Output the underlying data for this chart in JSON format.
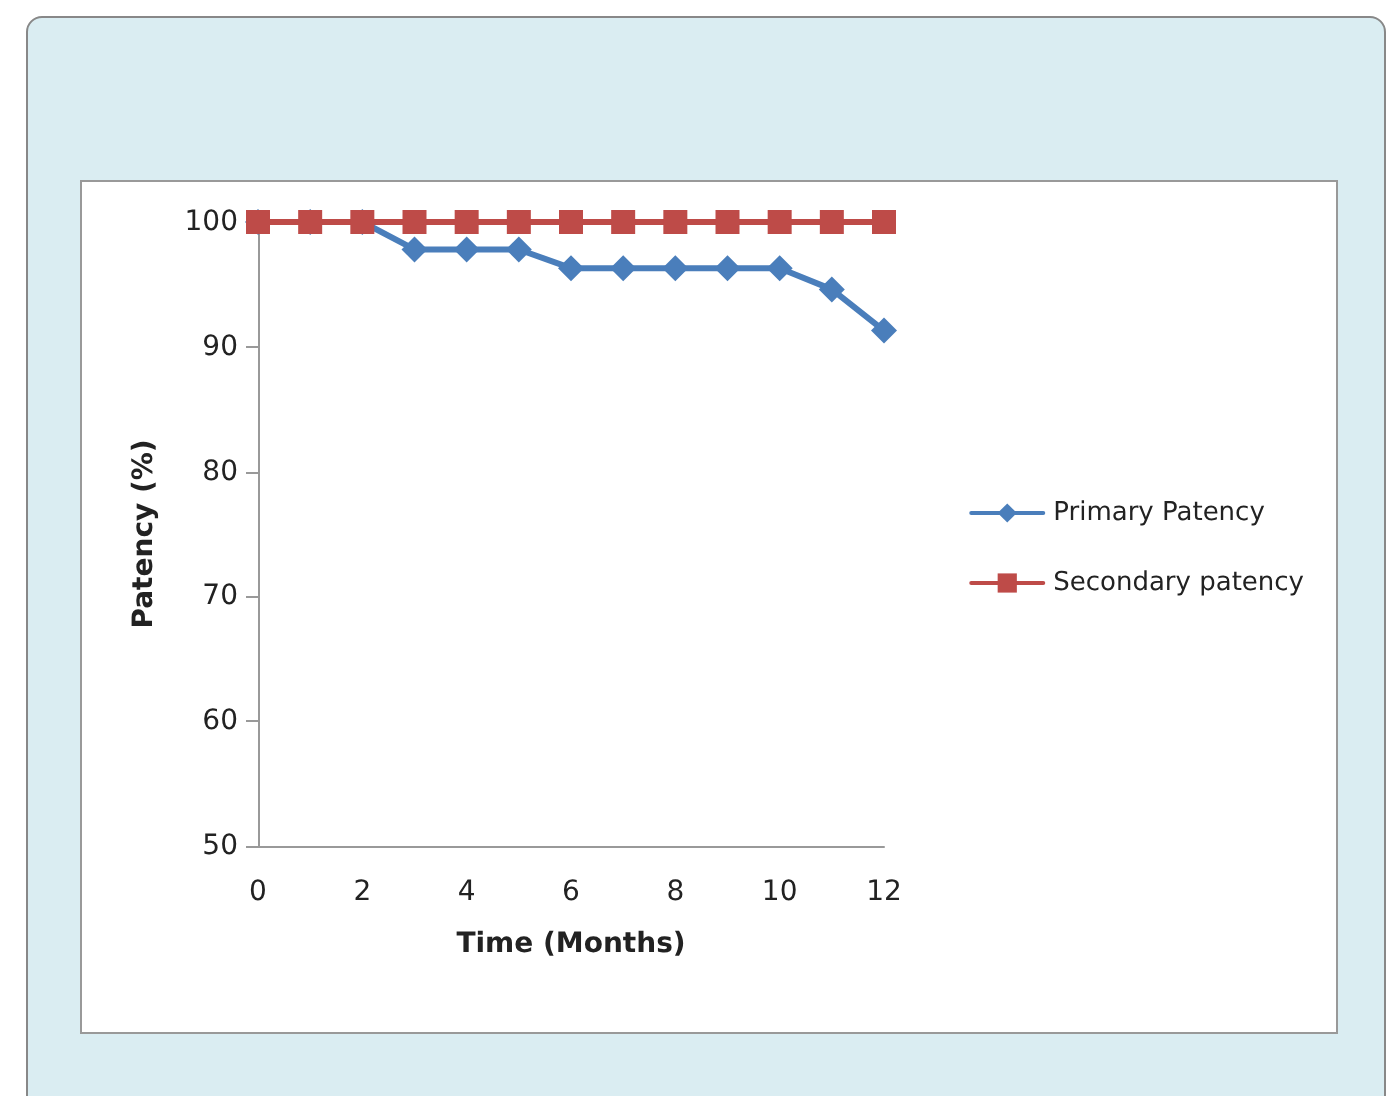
{
  "chart_data": {
    "type": "line",
    "xlabel": "Time (Months)",
    "ylabel": "Patency (%)",
    "x": [
      0,
      1,
      2,
      3,
      4,
      5,
      6,
      7,
      8,
      9,
      10,
      11,
      12
    ],
    "series": [
      {
        "name": "Primary Patency",
        "color": "#4a7ebb",
        "marker": "diamond",
        "values": [
          100,
          100,
          100,
          97.8,
          97.8,
          97.8,
          96.3,
          96.3,
          96.3,
          96.3,
          96.3,
          94.6,
          91.3
        ]
      },
      {
        "name": "Secondary patency",
        "color": "#be4b48",
        "marker": "square",
        "values": [
          100,
          100,
          100,
          100,
          100,
          100,
          100,
          100,
          100,
          100,
          100,
          100,
          100
        ]
      }
    ],
    "xlim": [
      0,
      12
    ],
    "xticks": [
      0,
      2,
      4,
      6,
      8,
      10,
      12
    ],
    "ylim": [
      50,
      100
    ],
    "yticks": [
      50,
      60,
      70,
      80,
      90,
      100
    ],
    "grid": false,
    "legend": "right",
    "line_style": "solid"
  }
}
